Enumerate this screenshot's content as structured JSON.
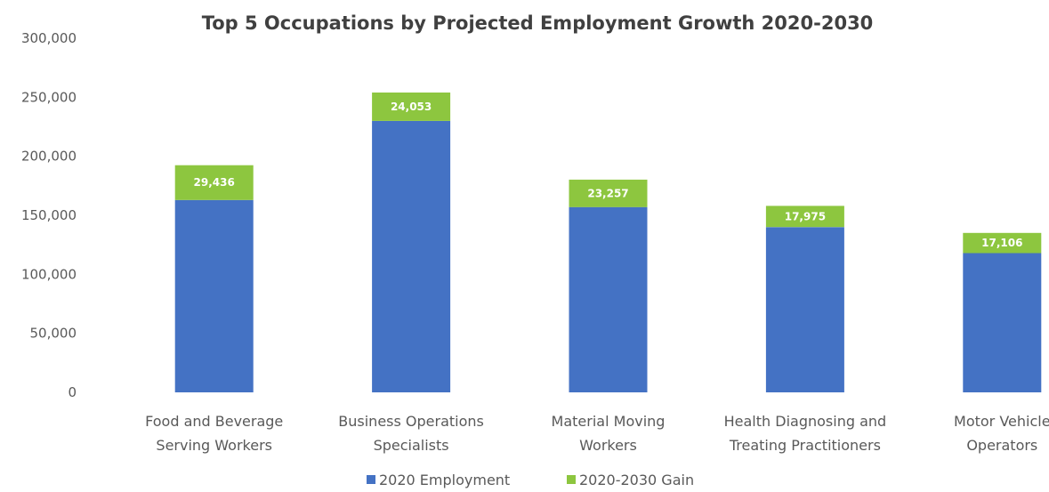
{
  "chart_data": {
    "type": "bar",
    "stacked": true,
    "title": "Top 5 Occupations by Projected Employment Growth 2020-2030",
    "xlabel": "",
    "ylabel": "",
    "ylim": [
      0,
      300000
    ],
    "yticks": [
      0,
      50000,
      100000,
      150000,
      200000,
      250000,
      300000
    ],
    "ytick_labels": [
      "0",
      "50,000",
      "100,000",
      "150,000",
      "200,000",
      "250,000",
      "300,000"
    ],
    "grid": false,
    "legend_position": "bottom",
    "categories": [
      [
        "Food and Beverage",
        "Serving Workers"
      ],
      [
        "Business Operations",
        "Specialists"
      ],
      [
        "Material Moving",
        "Workers"
      ],
      [
        "Health Diagnosing and",
        "Treating Practitioners"
      ],
      [
        "Motor Vehicle",
        "Operators"
      ]
    ],
    "series": [
      {
        "name": "2020 Employment",
        "color": "#4472C4",
        "values": [
          163000,
          230000,
          157000,
          140000,
          118000
        ]
      },
      {
        "name": "2020-2030 Gain",
        "color": "#8DC63F",
        "values": [
          29436,
          24053,
          23257,
          17975,
          17106
        ],
        "data_labels": [
          "29,436",
          "24,053",
          "23,257",
          "17,975",
          "17,106"
        ]
      }
    ]
  }
}
